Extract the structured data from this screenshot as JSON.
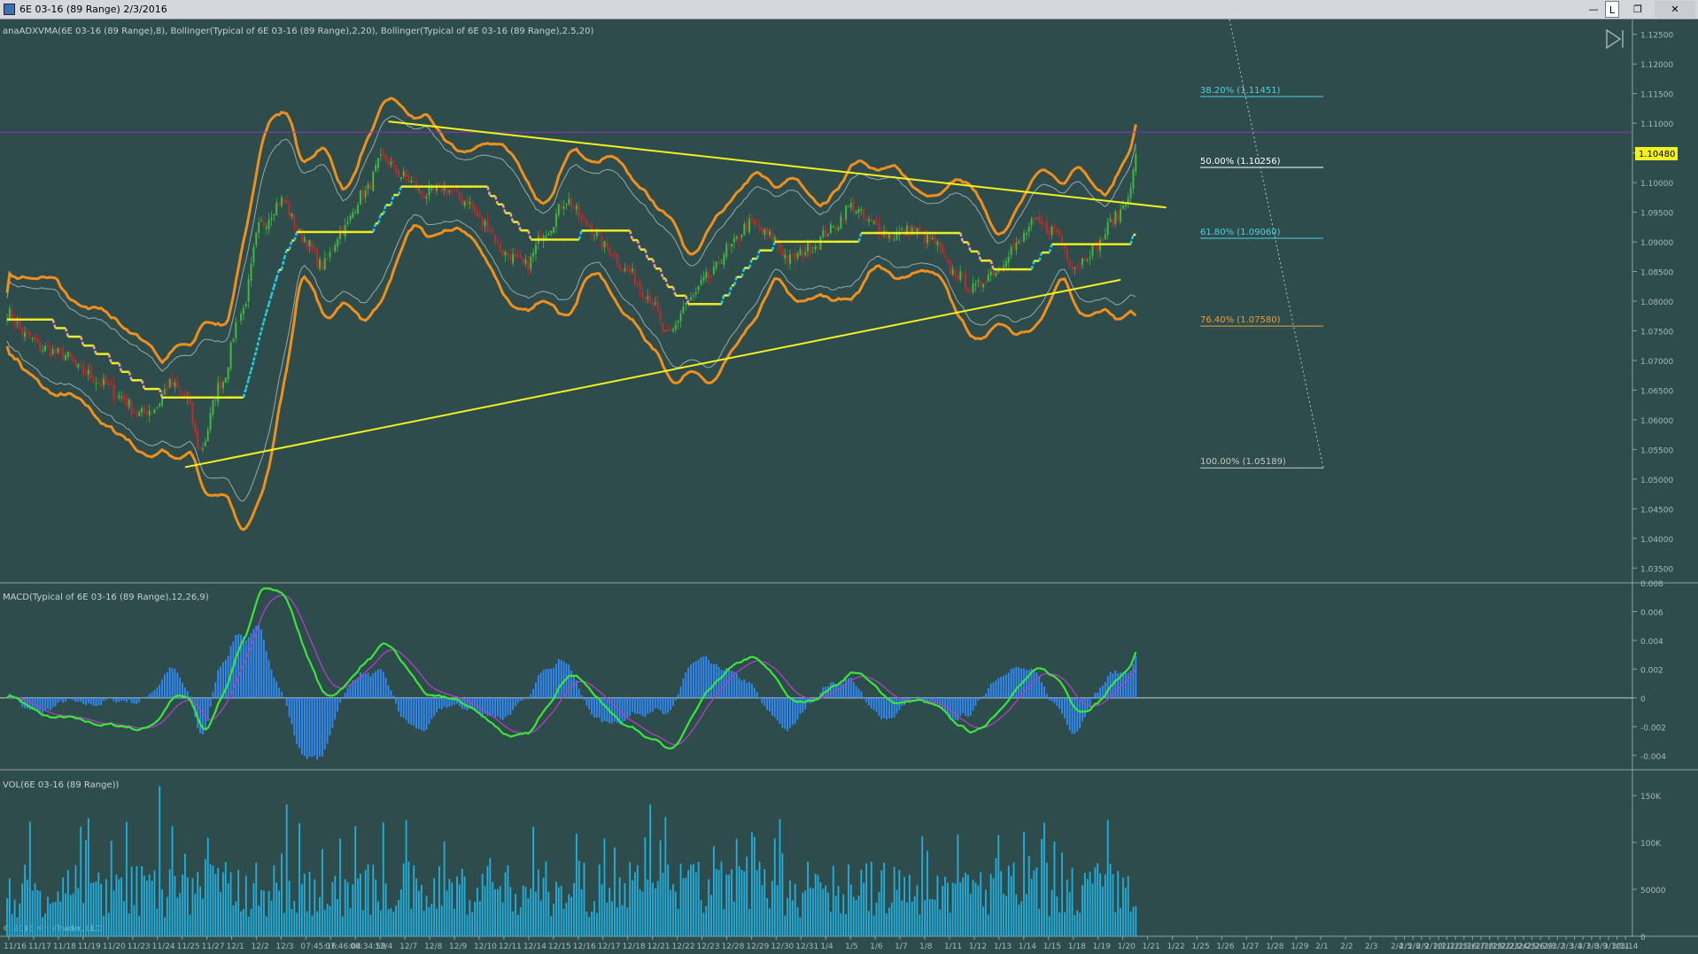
{
  "window": {
    "title": "6E 03-16 (89 Range)  2/3/2016",
    "link_label": "L"
  },
  "panels": {
    "price": {
      "indicator_label": "anaADXVMA(6E 03-16 (89 Range),8), Bollinger(Typical of 6E 03-16 (89 Range),2,20), Bollinger(Typical of 6E 03-16 (89 Range),2.5,20)",
      "y_ticks": [
        "1.12500",
        "1.12000",
        "1.11500",
        "1.11000",
        "1.10500",
        "1.10000",
        "1.09500",
        "1.09000",
        "1.08500",
        "1.08000",
        "1.07500",
        "1.07000",
        "1.06500",
        "1.06000",
        "1.05500",
        "1.05000",
        "1.04500",
        "1.04000",
        "1.03500"
      ],
      "last_price": "1.10480",
      "fib_levels": [
        {
          "label": "38.20% (1.11451)",
          "price": 1.11451,
          "color": "#4fd0e0"
        },
        {
          "label": "50.00% (1.10256)",
          "price": 1.10256,
          "color": "#ffffff"
        },
        {
          "label": "61.80% (1.09060)",
          "price": 1.0906,
          "color": "#4fd0e0"
        },
        {
          "label": "76.40% (1.07580)",
          "price": 1.0758,
          "color": "#e8a040"
        },
        {
          "label": "100.00% (1.05189)",
          "price": 1.05189,
          "color": "#c8c8c8"
        }
      ],
      "horizontal_line_price": 1.1085
    },
    "macd": {
      "indicator_label": "MACD(Typical of 6E 03-16 (89 Range),12,26,9)",
      "y_ticks": [
        "0.008",
        "0.006",
        "0.004",
        "0.002",
        "0",
        "-0.002",
        "-0.004"
      ]
    },
    "volume": {
      "indicator_label": "VOL(6E 03-16 (89 Range))",
      "y_ticks": [
        "150K",
        "100K",
        "50000",
        "0"
      ],
      "copyright": "© 2016 NinjaTrader, LLC"
    }
  },
  "x_axis_labels": [
    "11/16",
    "11/17",
    "11/18",
    "11/19",
    "11/20",
    "11/23",
    "11/24",
    "11/25",
    "11/27",
    "12/1",
    "12/2",
    "12/3",
    "07:45:16",
    "07:46:04",
    "08:34:59",
    "12/4",
    "12/7",
    "12/8",
    "12/9",
    "12/10",
    "12/11",
    "12/14",
    "12/15",
    "12/16",
    "12/17",
    "12/18",
    "12/21",
    "12/22",
    "12/23",
    "12/28",
    "12/29",
    "12/30",
    "12/31",
    "1/4",
    "1/5",
    "1/6",
    "1/7",
    "1/8",
    "1/11",
    "1/12",
    "1/13",
    "1/14",
    "1/15",
    "1/18",
    "1/19",
    "1/20",
    "1/21",
    "1/22",
    "1/25",
    "1/26",
    "1/27",
    "1/28",
    "1/29",
    "2/1",
    "2/2",
    "2/3",
    "2/4",
    "2/5",
    "2/8",
    "2/9",
    "2/10",
    "2/11",
    "2/12",
    "2/15",
    "2/16",
    "2/17",
    "2/18",
    "2/19",
    "2/22",
    "2/23",
    "2/24",
    "2/25",
    "2/26",
    "2/29",
    "3/1",
    "3/2",
    "3/3",
    "3/4",
    "3/7",
    "3/8",
    "3/9",
    "3/10",
    "3/11",
    "3/14"
  ],
  "chart_data": {
    "type": "candlestick",
    "instrument": "6E 03-16 (89 Range)",
    "y_range_price": [
      1.0325,
      1.1275
    ],
    "y_range_macd": [
      -0.005,
      0.008
    ],
    "y_range_volume": [
      0,
      170000
    ],
    "close_anchors": [
      [
        0,
        1.078
      ],
      [
        8,
        1.074
      ],
      [
        14,
        1.072
      ],
      [
        22,
        1.071
      ],
      [
        30,
        1.068
      ],
      [
        38,
        1.066
      ],
      [
        44,
        1.064
      ],
      [
        52,
        1.061
      ],
      [
        58,
        1.062
      ],
      [
        64,
        1.066
      ],
      [
        70,
        1.064
      ],
      [
        76,
        1.055
      ],
      [
        84,
        1.066
      ],
      [
        92,
        1.078
      ],
      [
        100,
        1.093
      ],
      [
        108,
        1.097
      ],
      [
        116,
        1.091
      ],
      [
        124,
        1.086
      ],
      [
        132,
        1.092
      ],
      [
        140,
        1.098
      ],
      [
        148,
        1.104
      ],
      [
        156,
        1.101
      ],
      [
        164,
        1.098
      ],
      [
        172,
        1.099
      ],
      [
        180,
        1.097
      ],
      [
        188,
        1.093
      ],
      [
        196,
        1.088
      ],
      [
        204,
        1.086
      ],
      [
        212,
        1.092
      ],
      [
        220,
        1.097
      ],
      [
        228,
        1.093
      ],
      [
        236,
        1.089
      ],
      [
        244,
        1.085
      ],
      [
        252,
        1.081
      ],
      [
        260,
        1.074
      ],
      [
        268,
        1.08
      ],
      [
        276,
        1.084
      ],
      [
        284,
        1.089
      ],
      [
        292,
        1.093
      ],
      [
        300,
        1.091
      ],
      [
        308,
        1.087
      ],
      [
        316,
        1.089
      ],
      [
        324,
        1.092
      ],
      [
        332,
        1.096
      ],
      [
        340,
        1.093
      ],
      [
        348,
        1.091
      ],
      [
        356,
        1.092
      ],
      [
        364,
        1.09
      ],
      [
        372,
        1.085
      ],
      [
        380,
        1.082
      ],
      [
        388,
        1.085
      ],
      [
        396,
        1.089
      ],
      [
        404,
        1.093
      ],
      [
        412,
        1.092
      ],
      [
        420,
        1.086
      ],
      [
        428,
        1.089
      ],
      [
        436,
        1.094
      ],
      [
        442,
        1.0985
      ],
      [
        444,
        1.1048
      ]
    ],
    "trendlines": [
      {
        "name": "upper",
        "from": [
          150,
          1.1103
        ],
        "to": [
          456,
          1.0958
        ]
      },
      {
        "name": "lower",
        "from": [
          70,
          1.052
        ],
        "to": [
          438,
          1.0836
        ]
      }
    ]
  },
  "colors": {
    "background": "#2f4c4c",
    "up_candle": "#3fb93f",
    "down_candle": "#c62828",
    "bollinger_outer": "#f0901a",
    "bollinger_inner": "#9aa8a8",
    "trendline": "#f2f21f",
    "adxvma_up": "#20d0e0",
    "adxvma_flat": "#f2f21f",
    "adxvma_down": "#f0a0a0",
    "macd_line": "#39e639",
    "macd_signal": "#b040c0",
    "macd_hist": "#2f8cff",
    "volume_bar": "#1fb0e0",
    "purple_line": "#9030c0"
  }
}
